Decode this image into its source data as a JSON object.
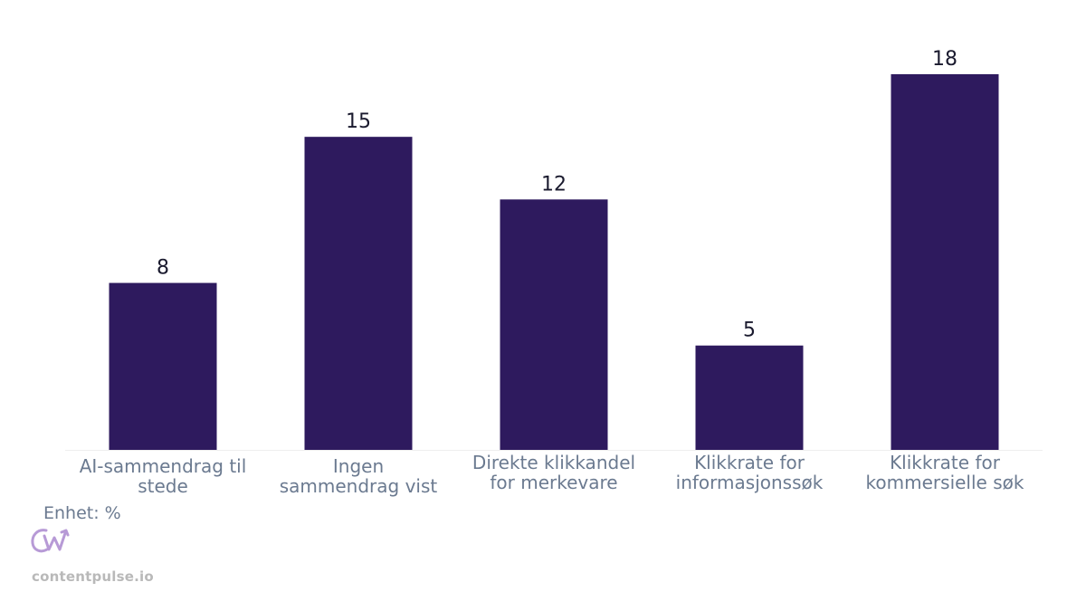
{
  "chart_data": {
    "type": "bar",
    "categories": [
      [
        "AI-sammendrag til",
        "stede"
      ],
      [
        "Ingen",
        "sammendrag vist"
      ],
      [
        "Direkte klikkandel",
        "for merkevare"
      ],
      [
        "Klikkrate for",
        "informasjonssøk"
      ],
      [
        "Klikkrate for",
        "kommersielle søk"
      ]
    ],
    "values": [
      8,
      15,
      12,
      5,
      18
    ],
    "data_labels": [
      "8",
      "15",
      "12",
      "5",
      "18"
    ],
    "ylim": [
      0,
      19
    ],
    "grid": false,
    "bar_color": "#2e1a5e"
  },
  "footer": {
    "unit_note": "Enhet: %",
    "brand": "contentpulse.io",
    "logo_text": "CW",
    "logo_color": "#b79ad6"
  },
  "colors": {
    "tick_label": "#6b7a90",
    "data_label": "#1a1a2e",
    "axis_line": "#eeeeee"
  }
}
